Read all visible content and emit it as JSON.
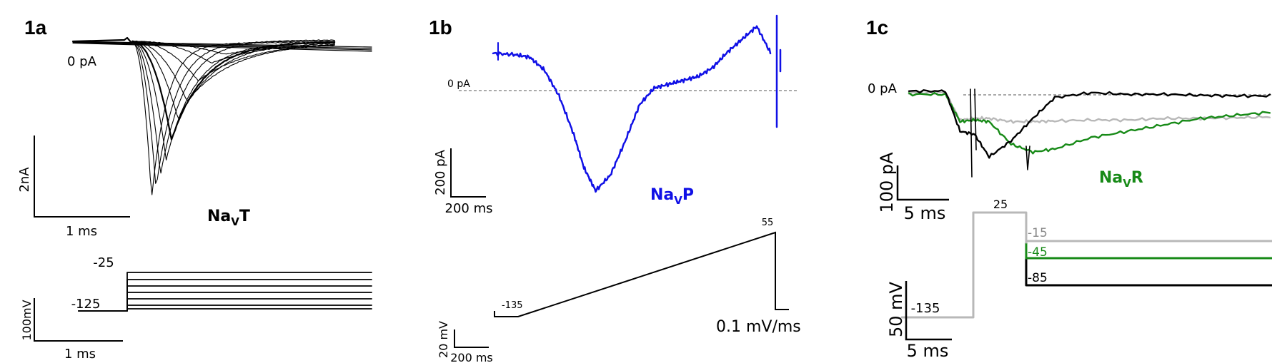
{
  "colors": {
    "black": "#000000",
    "blue": "#1010e6",
    "green": "#178a17",
    "gray": "#b8b8b8",
    "dash": "#555555"
  },
  "chart_data": [
    {
      "panel": "1a",
      "type": "line",
      "title": "",
      "current_zero_label": "0 pA",
      "current_scale": {
        "value_label": "2nA",
        "time_label": "1 ms"
      },
      "voltage_scale": {
        "value_label": "100mV",
        "time_label": "1 ms"
      },
      "channel_label": {
        "main": "Na",
        "sub": "V",
        "suffix": "T"
      },
      "protocol": {
        "holding_label": "-125",
        "holding_mV": -125,
        "first_step_label": "-25",
        "steps_mV": [
          -25,
          -35,
          -45,
          -55,
          -65,
          -75,
          -85
        ]
      },
      "traces": [
        {
          "step_mV": -25,
          "peak_nA": -4.8,
          "peak_time_ms": 0.55,
          "tau_ms": 0.35
        },
        {
          "step_mV": -30,
          "peak_nA": -4.5,
          "peak_time_ms": 0.65,
          "tau_ms": 0.45
        },
        {
          "step_mV": -35,
          "peak_nA": -4.1,
          "peak_time_ms": 0.75,
          "tau_ms": 0.55
        },
        {
          "step_mV": -40,
          "peak_nA": -3.6,
          "peak_time_ms": 0.88,
          "tau_ms": 0.65
        },
        {
          "step_mV": -45,
          "peak_nA": -3.0,
          "peak_time_ms": 1.0,
          "tau_ms": 0.75
        },
        {
          "step_mV": -50,
          "peak_nA": -2.4,
          "peak_time_ms": 1.15,
          "tau_ms": 0.9
        },
        {
          "step_mV": -55,
          "peak_nA": -1.8,
          "peak_time_ms": 1.35,
          "tau_ms": 1.05
        },
        {
          "step_mV": -60,
          "peak_nA": -1.2,
          "peak_time_ms": 1.6,
          "tau_ms": 1.2
        },
        {
          "step_mV": -65,
          "peak_nA": -0.7,
          "peak_time_ms": 1.9,
          "tau_ms": 1.4
        },
        {
          "step_mV": -70,
          "peak_nA": -0.35,
          "peak_time_ms": 2.2,
          "tau_ms": 1.6
        }
      ]
    },
    {
      "panel": "1b",
      "type": "line",
      "title": "",
      "current_zero_label": "0 pA",
      "current_scale": {
        "value_label": "200 pA",
        "time_label": "200 ms"
      },
      "voltage_scale": {
        "value_label": "20 mV",
        "time_label": "200 ms"
      },
      "channel_label": {
        "main": "Na",
        "sub": "V",
        "suffix": "P"
      },
      "protocol": {
        "start_label": "-135",
        "end_label": "55",
        "rate_label": "0.1 mV/ms",
        "start_mV": -135,
        "end_mV": 55,
        "rate_mV_per_ms": 0.1
      },
      "trace": {
        "x_ms": [
          0,
          150,
          250,
          350,
          450,
          550,
          620,
          700,
          800,
          900,
          1000,
          1100,
          1200,
          1300,
          1400,
          1500,
          1600,
          1700,
          1800,
          1900
        ],
        "y_pA": [
          145,
          140,
          130,
          80,
          -20,
          -170,
          -300,
          -390,
          -330,
          -200,
          -55,
          10,
          25,
          40,
          55,
          90,
          150,
          200,
          250,
          140
        ]
      }
    },
    {
      "panel": "1c",
      "type": "line",
      "title": "",
      "current_zero_label": "0 pA",
      "current_scale": {
        "value_label": "100 pA",
        "time_label": "5 ms"
      },
      "voltage_scale": {
        "value_label": "50 mV",
        "time_label": "5 ms"
      },
      "channel_label": {
        "main": "Na",
        "sub": "V",
        "suffix": "R"
      },
      "protocol": {
        "holding_label": "-135",
        "prepulse_label": "25",
        "steps": [
          {
            "label": "-15",
            "mV": -15,
            "color": "gray"
          },
          {
            "label": "-45",
            "mV": -45,
            "color": "green"
          },
          {
            "label": "-85",
            "mV": -85,
            "color": "black"
          }
        ]
      },
      "series": [
        {
          "color": "black",
          "x_ms": [
            0,
            5,
            7,
            9,
            11,
            14,
            17,
            20,
            25,
            30,
            35,
            40,
            45,
            50
          ],
          "y_pA": [
            5,
            5,
            -120,
            -130,
            -200,
            -150,
            -80,
            -15,
            0,
            -5,
            -5,
            -8,
            -10,
            -10
          ]
        },
        {
          "color": "gray",
          "x_ms": [
            0,
            5,
            7,
            9,
            11,
            14,
            17,
            20,
            25,
            30,
            35,
            40,
            45,
            50
          ],
          "y_pA": [
            0,
            0,
            -85,
            -80,
            -80,
            -90,
            -90,
            -88,
            -85,
            -85,
            -80,
            -80,
            -78,
            -75
          ]
        },
        {
          "color": "green",
          "x_ms": [
            0,
            5,
            7,
            9,
            11,
            14,
            17,
            20,
            25,
            30,
            35,
            40,
            45,
            50
          ],
          "y_pA": [
            -5,
            -5,
            -90,
            -85,
            -90,
            -160,
            -185,
            -175,
            -140,
            -120,
            -100,
            -80,
            -70,
            -60
          ]
        }
      ]
    }
  ]
}
